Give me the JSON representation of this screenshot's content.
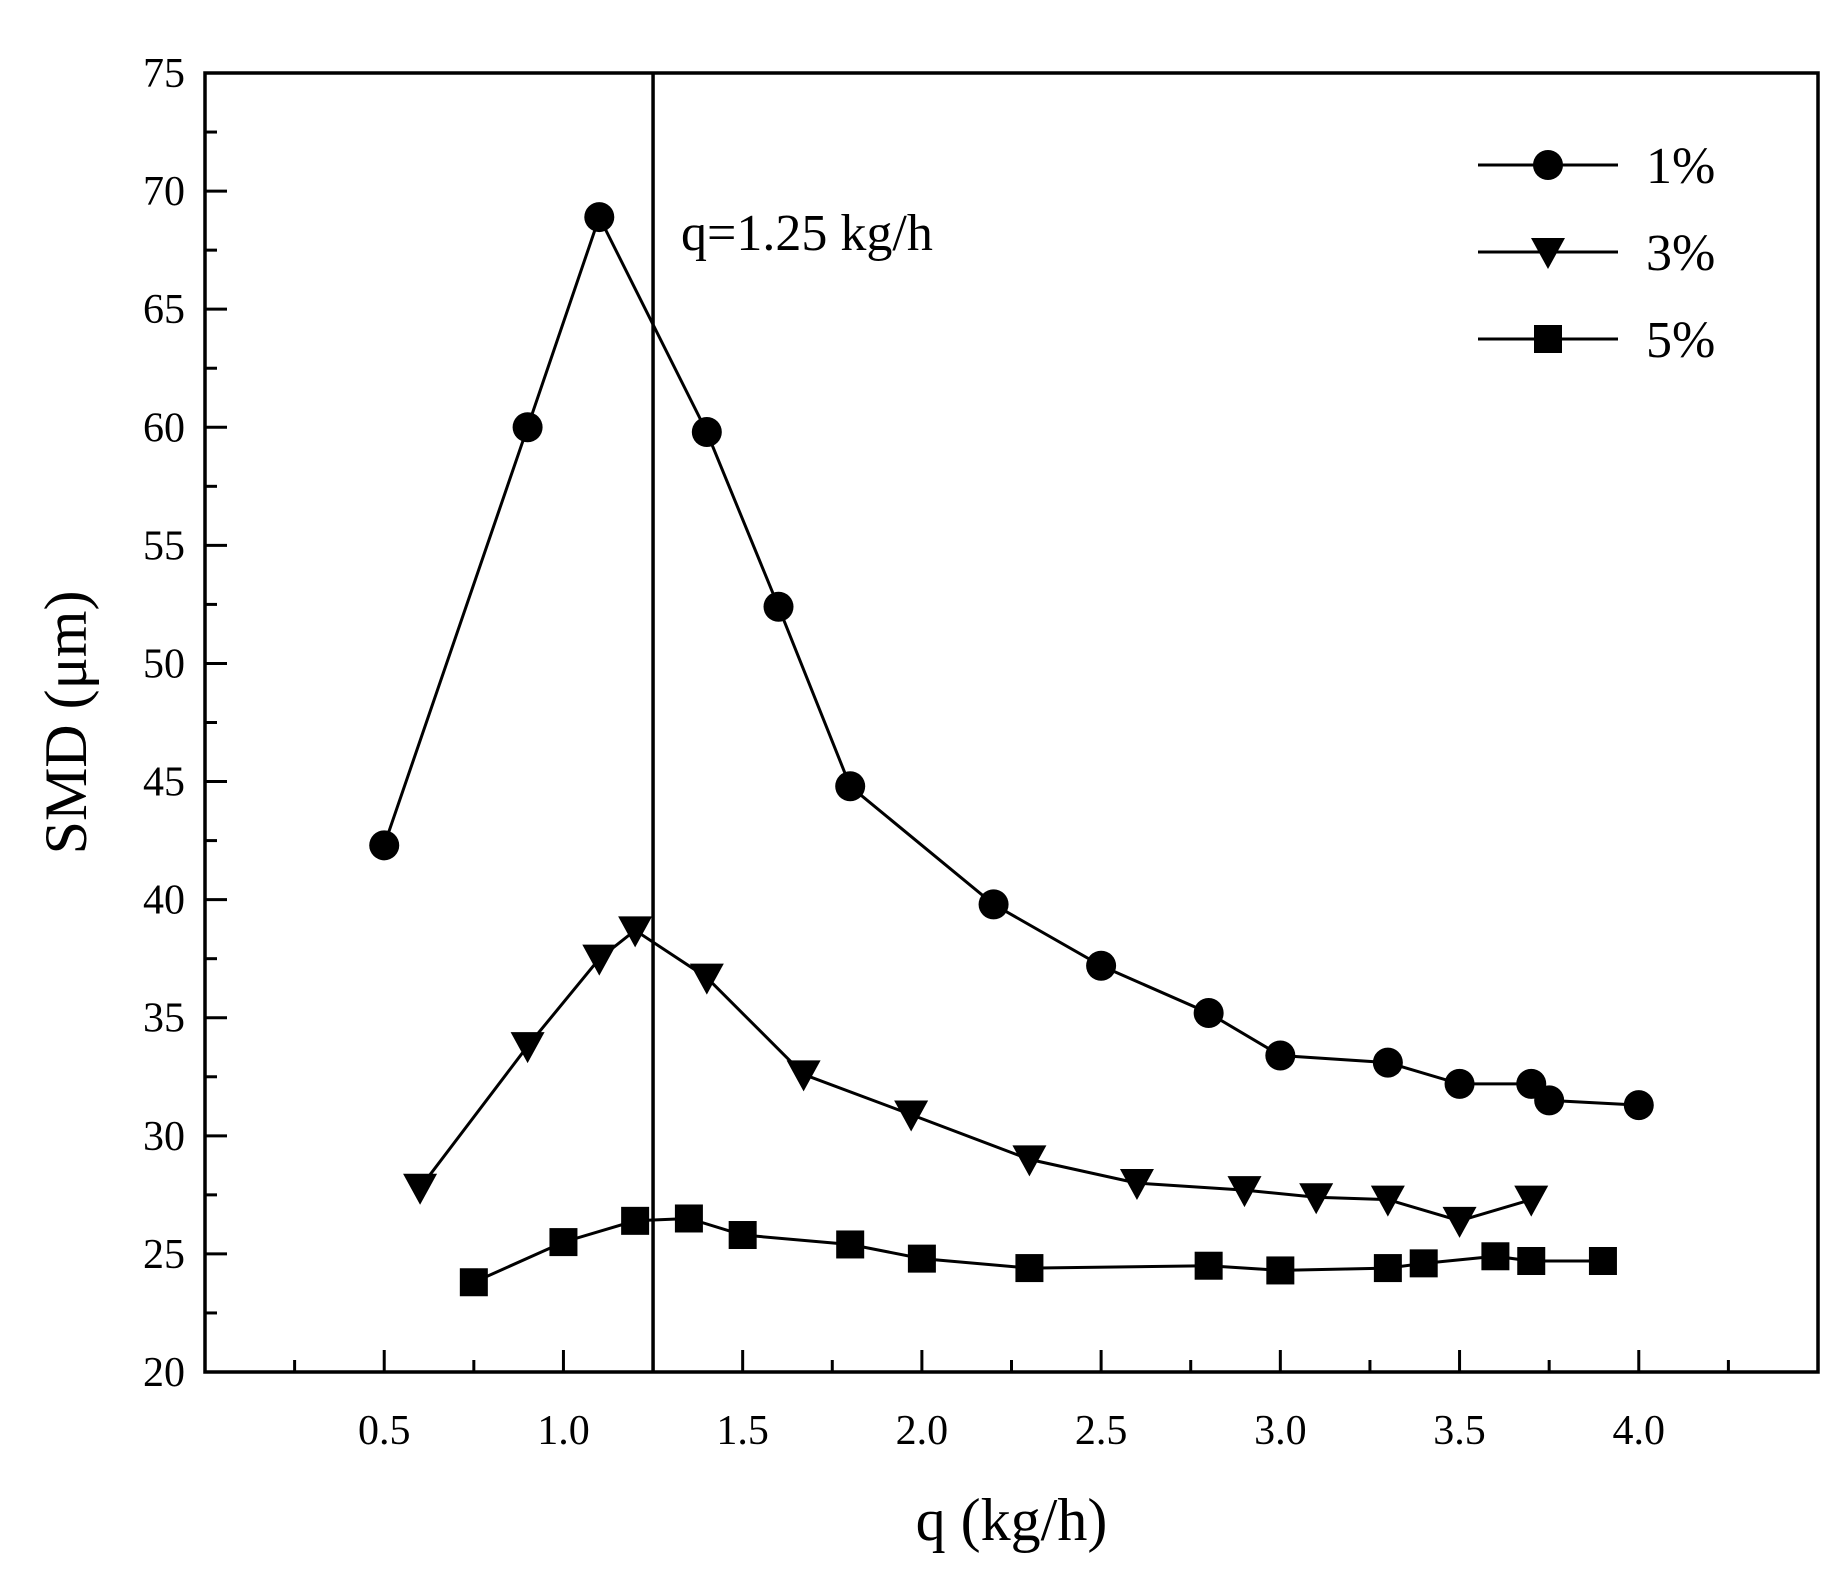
{
  "chart_data": {
    "type": "line",
    "title": "",
    "xlabel": "q (kg/h)",
    "ylabel": "SMD (μm)",
    "xlim": [
      0.0,
      4.5
    ],
    "ylim": [
      20,
      75
    ],
    "x_ticks": [
      0.5,
      1.0,
      1.5,
      2.0,
      2.5,
      3.0,
      3.5,
      4.0
    ],
    "x_tick_labels": [
      "0.5",
      "1.0",
      "1.5",
      "2.0",
      "2.5",
      "3.0",
      "3.5",
      "4.0"
    ],
    "x_minor_ticks": [
      0.25,
      0.75,
      1.25,
      1.75,
      2.25,
      2.75,
      3.25,
      3.75,
      4.25
    ],
    "y_ticks": [
      20,
      25,
      30,
      35,
      40,
      45,
      50,
      55,
      60,
      65,
      70,
      75
    ],
    "y_tick_labels": [
      "20",
      "25",
      "30",
      "35",
      "40",
      "45",
      "50",
      "55",
      "60",
      "65",
      "70",
      "75"
    ],
    "y_minor_ticks": [
      22.5,
      27.5,
      32.5,
      37.5,
      42.5,
      47.5,
      52.5,
      57.5,
      62.5,
      67.5,
      72.5
    ],
    "grid": false,
    "legend_position": "top-right",
    "series": [
      {
        "name": "1%",
        "marker": "circle",
        "x": [
          0.5,
          0.9,
          1.1,
          1.4,
          1.6,
          1.8,
          2.2,
          2.5,
          2.8,
          3.0,
          3.3,
          3.5,
          3.7,
          3.75,
          4.0
        ],
        "y": [
          42.3,
          60.0,
          68.9,
          59.8,
          52.4,
          44.8,
          39.8,
          37.2,
          35.2,
          33.4,
          33.1,
          32.2,
          32.2,
          31.5,
          31.3
        ]
      },
      {
        "name": "3%",
        "marker": "triangle-down",
        "x": [
          0.6,
          0.9,
          1.1,
          1.2,
          1.4,
          1.67,
          1.97,
          2.3,
          2.6,
          2.9,
          3.1,
          3.3,
          3.5,
          3.7
        ],
        "y": [
          27.8,
          33.8,
          37.5,
          38.7,
          36.7,
          32.6,
          30.9,
          29.0,
          28.0,
          27.7,
          27.4,
          27.3,
          26.4,
          27.3
        ]
      },
      {
        "name": "5%",
        "marker": "square",
        "x": [
          0.75,
          1.0,
          1.2,
          1.35,
          1.5,
          1.8,
          2.0,
          2.3,
          2.8,
          3.0,
          3.3,
          3.4,
          3.6,
          3.7,
          3.9
        ],
        "y": [
          23.8,
          25.5,
          26.4,
          26.5,
          25.8,
          25.4,
          24.8,
          24.4,
          24.5,
          24.3,
          24.4,
          24.6,
          24.9,
          24.7,
          24.7
        ]
      }
    ],
    "annotations": [
      {
        "type": "vertical-line",
        "x": 1.25,
        "text": "q=1.25 kg/h"
      }
    ]
  }
}
